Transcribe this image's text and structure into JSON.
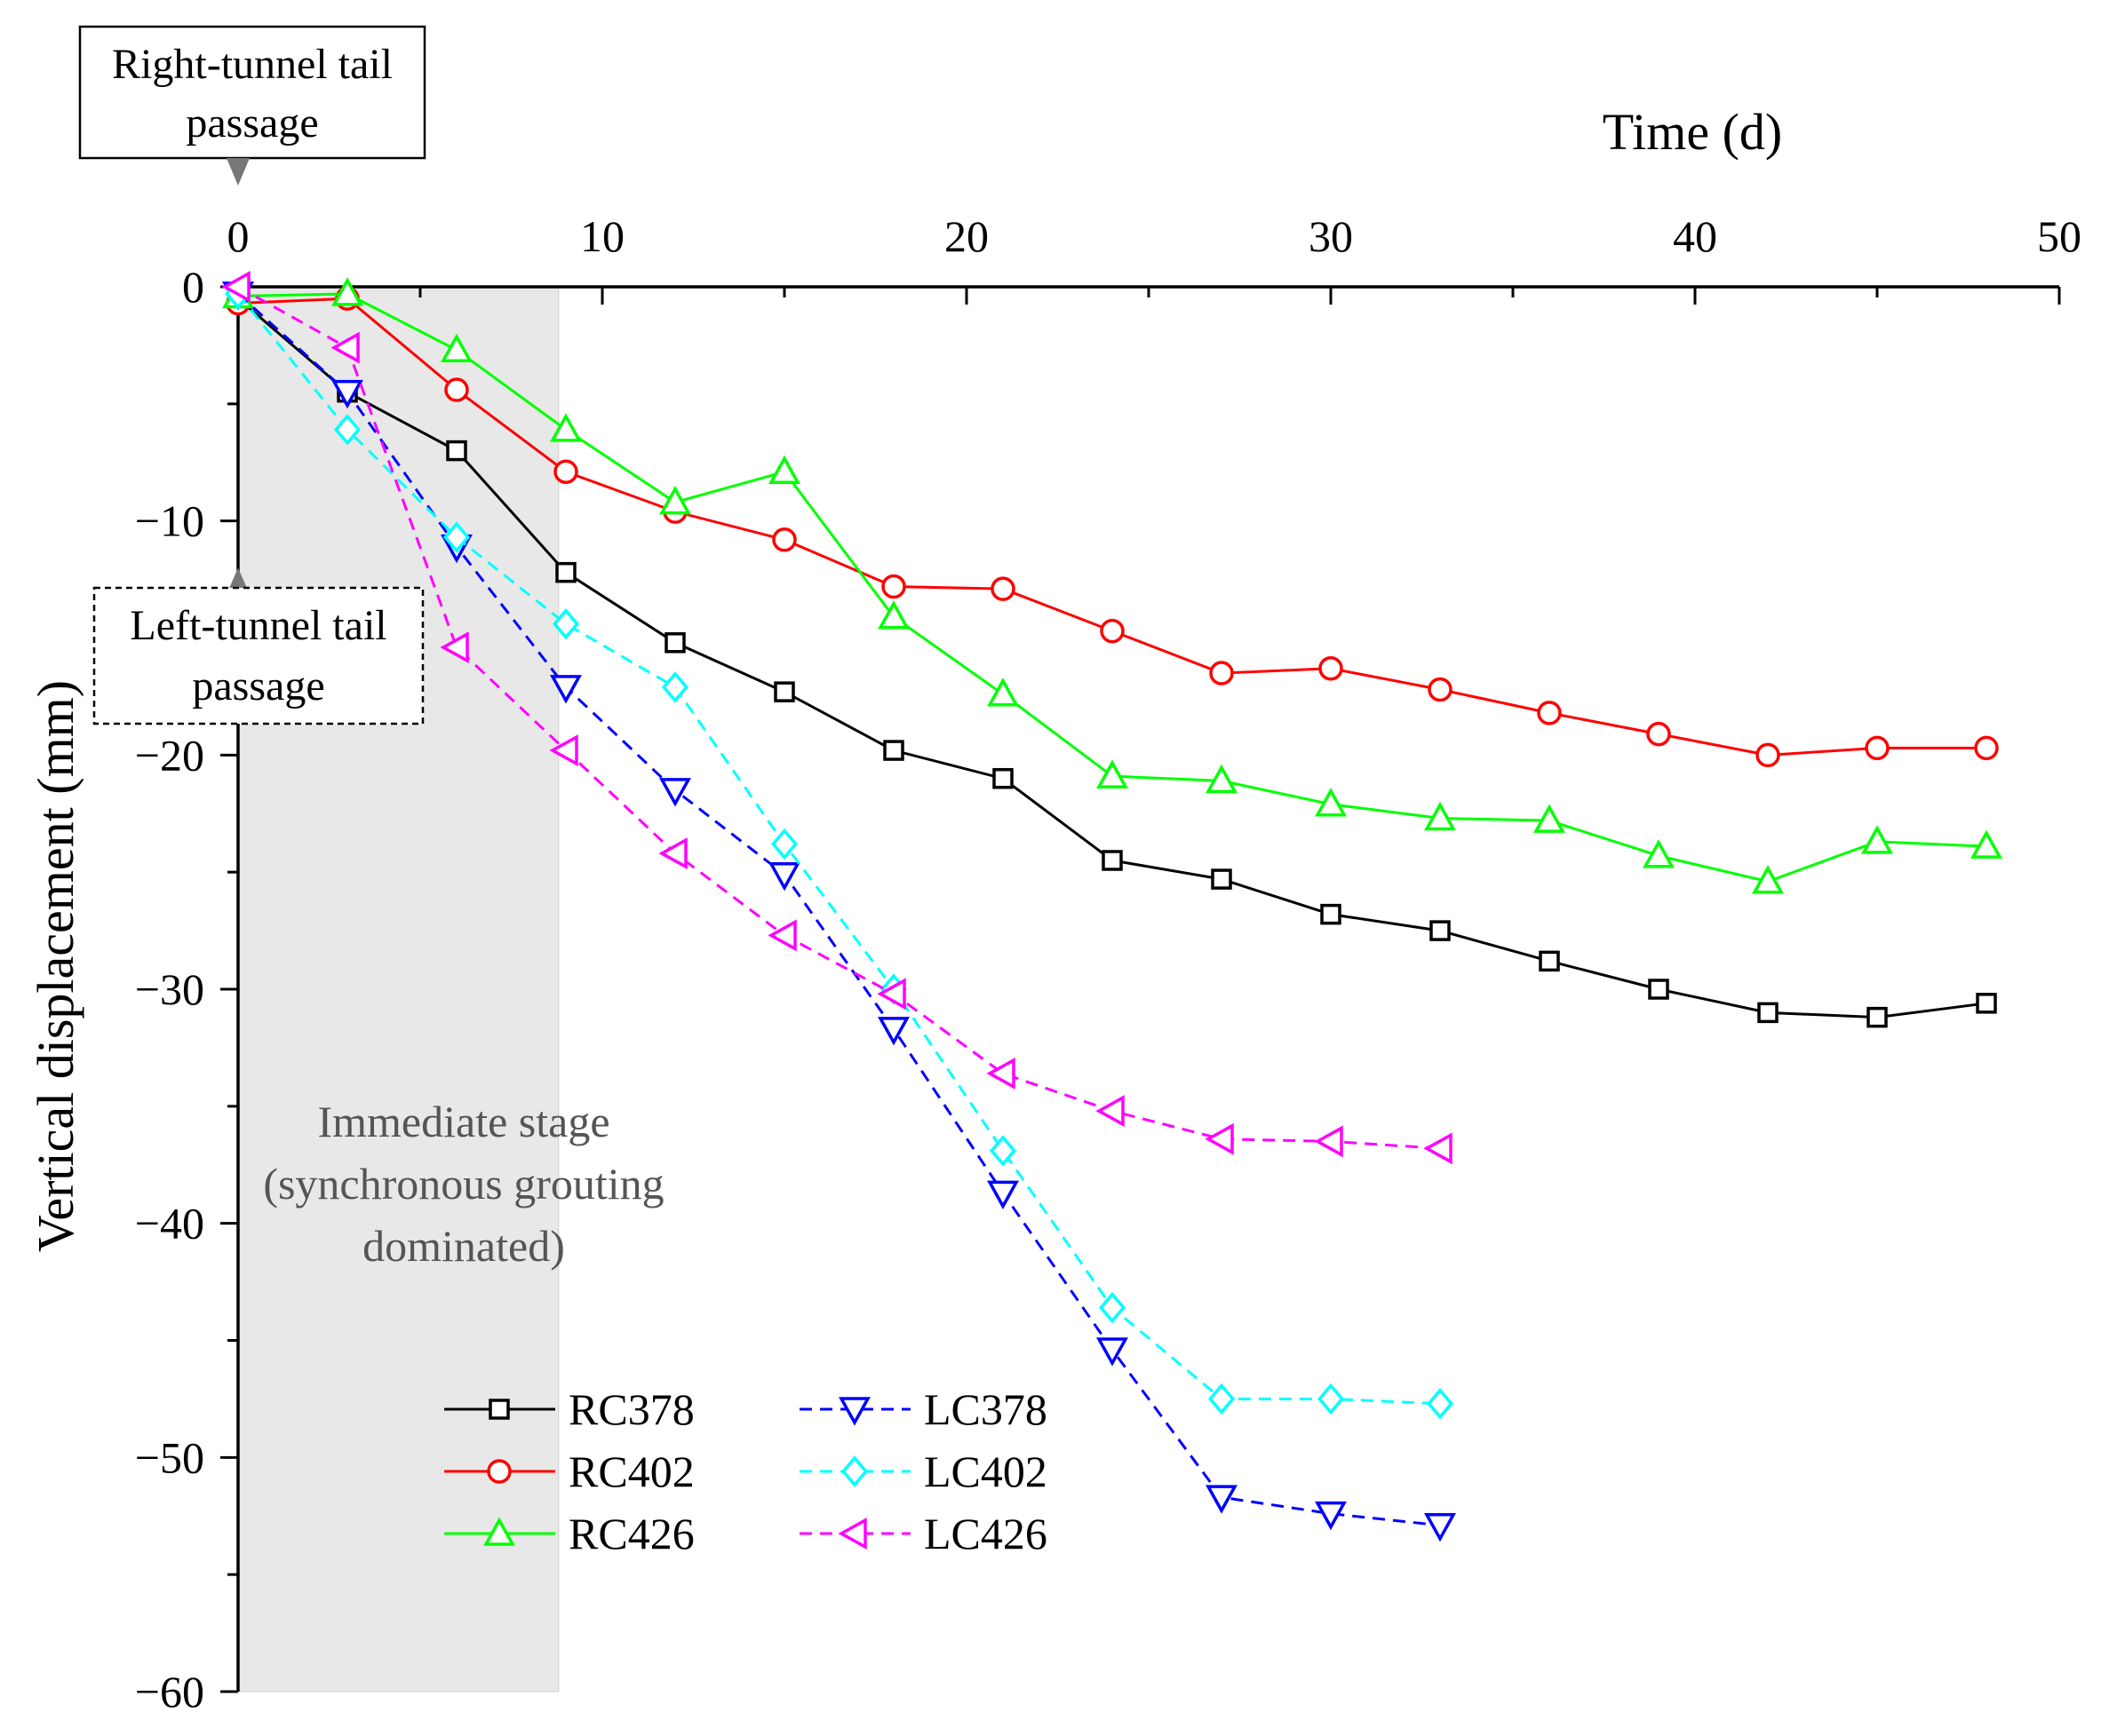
{
  "chart_data": {
    "type": "line",
    "xlabel": "Time (d)",
    "ylabel": "Vertical displacement (mm)",
    "xlim": [
      0,
      50
    ],
    "ylim": [
      -60,
      0
    ],
    "xticks": [
      "0",
      "10",
      "20",
      "30",
      "40",
      "50"
    ],
    "yticks": [
      "0",
      "−10",
      "−20",
      "−30",
      "−40",
      "−50",
      "−60"
    ],
    "x_minor_tick_step": 5,
    "legend_position": "bottom-center",
    "shaded_region": {
      "x_range": [
        0,
        8.8
      ],
      "color": "#e8e8e8",
      "label_lines": [
        "Immediate stage",
        "(synchronous grouting",
        "dominated)"
      ]
    },
    "annotations": [
      {
        "lines": [
          "Right-tunnel tail",
          "passage"
        ],
        "style": "solid-box",
        "points_to": {
          "x": 0,
          "y": 0
        },
        "arrow": "down"
      },
      {
        "lines": [
          "Left-tunnel tail",
          "passage"
        ],
        "style": "dashed-box",
        "points_to": {
          "x": 0,
          "y": -12
        },
        "arrow": "up"
      }
    ],
    "series": [
      {
        "name": "RC378",
        "color": "#000000",
        "dash": "solid",
        "marker": "square",
        "x": [
          0,
          3,
          6,
          9,
          12,
          15,
          18,
          21,
          24,
          27,
          30,
          33,
          36,
          39,
          42,
          45,
          48
        ],
        "y": [
          -0.5,
          -4.5,
          -7.0,
          -12.2,
          -15.2,
          -17.3,
          -19.8,
          -21.0,
          -24.5,
          -25.3,
          -26.8,
          -27.5,
          -28.8,
          -30.0,
          -31.0,
          -31.2,
          -30.6
        ]
      },
      {
        "name": "RC402",
        "color": "#ff0000",
        "dash": "solid",
        "marker": "circle",
        "x": [
          0,
          3,
          6,
          9,
          12,
          15,
          18,
          21,
          24,
          27,
          30,
          33,
          36,
          39,
          42,
          45,
          48
        ],
        "y": [
          -0.7,
          -0.5,
          -4.4,
          -7.9,
          -9.6,
          -10.8,
          -12.8,
          -12.9,
          -14.7,
          -16.5,
          -16.3,
          -17.2,
          -18.2,
          -19.1,
          -20.0,
          -19.7,
          -19.7
        ]
      },
      {
        "name": "RC426",
        "color": "#00ff00",
        "dash": "solid",
        "marker": "triangle-up",
        "x": [
          0,
          3,
          6,
          9,
          12,
          15,
          18,
          21,
          24,
          27,
          30,
          33,
          36,
          39,
          42,
          45,
          48
        ],
        "y": [
          -0.4,
          -0.3,
          -2.7,
          -6.1,
          -9.2,
          -7.9,
          -14.1,
          -17.4,
          -20.9,
          -21.1,
          -22.1,
          -22.7,
          -22.8,
          -24.3,
          -25.4,
          -23.7,
          -23.9
        ]
      },
      {
        "name": "LC378",
        "color": "#0000ff",
        "dash": "dashed",
        "marker": "triangle-down",
        "x": [
          0,
          3,
          6,
          9,
          12,
          15,
          18,
          21,
          24,
          27,
          30,
          33
        ],
        "y": [
          -0.3,
          -4.5,
          -11.1,
          -17.1,
          -21.5,
          -25.1,
          -31.7,
          -38.7,
          -45.4,
          -51.7,
          -52.4,
          -52.9
        ]
      },
      {
        "name": "LC402",
        "color": "#00ffff",
        "dash": "dashed",
        "marker": "diamond",
        "x": [
          0,
          3,
          6,
          9,
          12,
          15,
          18,
          21,
          24,
          27,
          30,
          33
        ],
        "y": [
          -0.3,
          -6.1,
          -10.7,
          -14.4,
          -17.1,
          -23.8,
          -30.0,
          -36.9,
          -43.6,
          -47.5,
          -47.5,
          -47.7
        ]
      },
      {
        "name": "LC426",
        "color": "#ff00ff",
        "dash": "dashed",
        "marker": "triangle-left",
        "x": [
          0,
          3,
          6,
          9,
          12,
          15,
          18,
          21,
          24,
          27,
          30,
          33
        ],
        "y": [
          0,
          -2.6,
          -15.4,
          -19.8,
          -24.2,
          -27.7,
          -30.2,
          -33.6,
          -35.2,
          -36.4,
          -36.5,
          -36.8
        ]
      }
    ]
  }
}
